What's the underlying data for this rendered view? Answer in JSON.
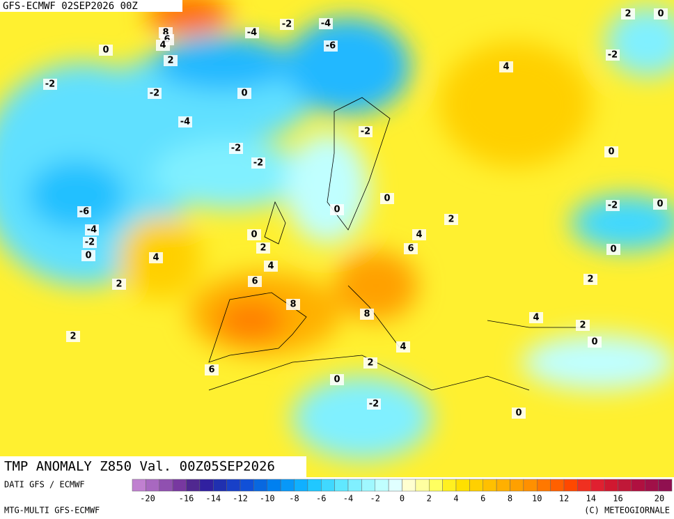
{
  "header": {
    "title": "GFS-ECMWF 02SEP2026 00Z"
  },
  "map": {
    "title": "TMP ANOMALY Z850 Val. 00Z05SEP2026",
    "contour_labels": [
      8,
      6,
      4,
      0,
      2,
      -4,
      -2,
      -4,
      -6,
      -2,
      -2,
      0,
      -4,
      -2,
      -2,
      -2,
      4,
      2,
      0,
      -2,
      0,
      -6,
      -4,
      -2,
      0,
      0,
      0,
      2,
      4,
      0,
      2,
      6,
      4,
      4,
      2,
      6,
      8,
      8,
      -2,
      0,
      0,
      2,
      4,
      2,
      0,
      2,
      4,
      2,
      6,
      0,
      -2,
      0
    ]
  },
  "footer": {
    "source": "DATI GFS / ECMWF",
    "model": "MTG-MULTI GFS-ECMWF",
    "copyright": "(C) METEOGIORNALE"
  },
  "colorbar": {
    "range": [
      -20,
      20
    ],
    "ticks": [
      -20,
      -16,
      -14,
      -12,
      -10,
      -8,
      -6,
      -4,
      -2,
      0,
      2,
      4,
      6,
      8,
      10,
      12,
      14,
      16,
      20
    ],
    "colors": [
      "#c080d0",
      "#a868c0",
      "#9050b0",
      "#7838a0",
      "#502890",
      "#3020a0",
      "#2030b0",
      "#1840c8",
      "#1050d8",
      "#0868e0",
      "#0080f0",
      "#0898f8",
      "#10b0ff",
      "#20c8ff",
      "#40d8ff",
      "#60e8ff",
      "#80f0ff",
      "#a0f8ff",
      "#c0ffff",
      "#e0ffff",
      "#ffffd0",
      "#ffffa0",
      "#ffff60",
      "#fff020",
      "#ffe000",
      "#ffd000",
      "#ffc000",
      "#ffb000",
      "#ffa000",
      "#ff9000",
      "#ff7800",
      "#ff6000",
      "#ff4800",
      "#f03020",
      "#e02030",
      "#d01830",
      "#c01838",
      "#b01040",
      "#a01048",
      "#901050"
    ]
  }
}
